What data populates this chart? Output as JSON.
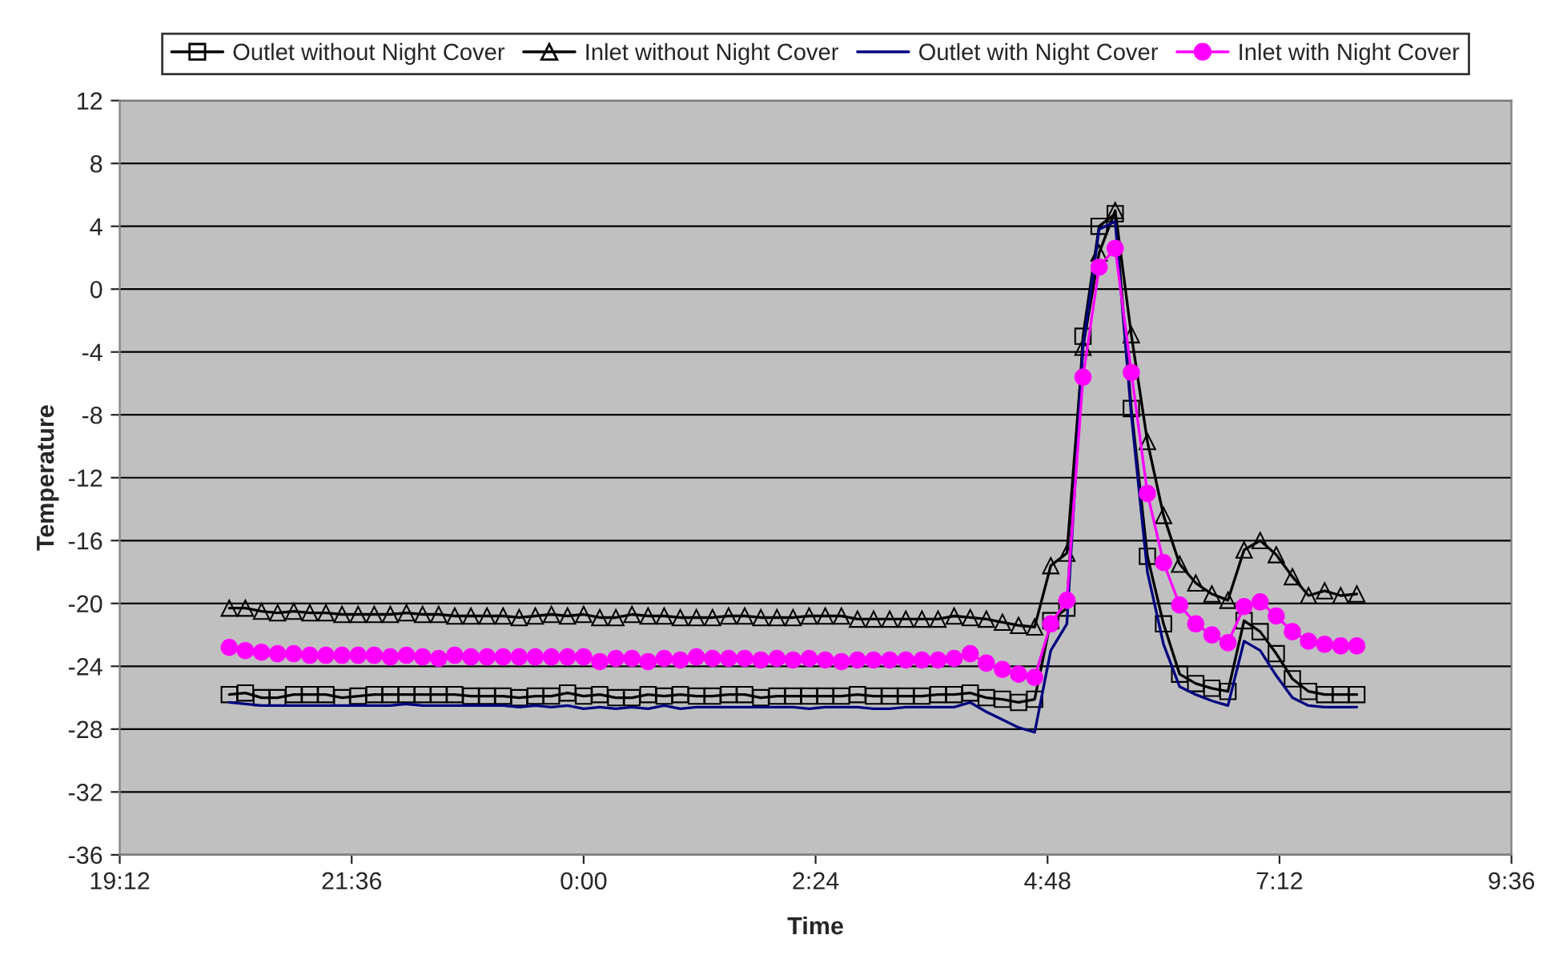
{
  "chart_data": {
    "type": "line",
    "xlabel": "Time",
    "ylabel": "Temperature",
    "x": [
      "2000-01-01T20:20",
      "2000-01-01T20:30",
      "2000-01-01T20:40",
      "2000-01-01T20:50",
      "2000-01-01T21:00",
      "2000-01-01T21:10",
      "2000-01-01T21:20",
      "2000-01-01T21:30",
      "2000-01-01T21:40",
      "2000-01-01T21:50",
      "2000-01-01T22:00",
      "2000-01-01T22:10",
      "2000-01-01T22:20",
      "2000-01-01T22:30",
      "2000-01-01T22:40",
      "2000-01-01T22:50",
      "2000-01-01T23:00",
      "2000-01-01T23:10",
      "2000-01-01T23:20",
      "2000-01-01T23:30",
      "2000-01-01T23:40",
      "2000-01-01T23:50",
      "2000-01-02T00:00",
      "2000-01-02T00:10",
      "2000-01-02T00:20",
      "2000-01-02T00:30",
      "2000-01-02T00:40",
      "2000-01-02T00:50",
      "2000-01-02T01:00",
      "2000-01-02T01:10",
      "2000-01-02T01:20",
      "2000-01-02T01:30",
      "2000-01-02T01:40",
      "2000-01-02T01:50",
      "2000-01-02T02:00",
      "2000-01-02T02:10",
      "2000-01-02T02:20",
      "2000-01-02T02:30",
      "2000-01-02T02:40",
      "2000-01-02T02:50",
      "2000-01-02T03:00",
      "2000-01-02T03:10",
      "2000-01-02T03:20",
      "2000-01-02T03:30",
      "2000-01-02T03:40",
      "2000-01-02T03:50",
      "2000-01-02T04:00",
      "2000-01-02T04:10",
      "2000-01-02T04:20",
      "2000-01-02T04:30",
      "2000-01-02T04:40",
      "2000-01-02T04:50",
      "2000-01-02T05:00",
      "2000-01-02T05:10",
      "2000-01-02T05:20",
      "2000-01-02T05:30",
      "2000-01-02T05:40",
      "2000-01-02T05:50",
      "2000-01-02T06:00",
      "2000-01-02T06:10",
      "2000-01-02T06:20",
      "2000-01-02T06:30",
      "2000-01-02T06:40",
      "2000-01-02T06:50",
      "2000-01-02T07:00",
      "2000-01-02T07:10",
      "2000-01-02T07:20",
      "2000-01-02T07:30",
      "2000-01-02T07:40",
      "2000-01-02T07:50",
      "2000-01-02T08:00"
    ],
    "series": [
      {
        "name": "Outlet without Night Cover",
        "color": "#000000",
        "marker": "square",
        "values": [
          -25.8,
          -25.7,
          -26.0,
          -26.0,
          -25.8,
          -25.8,
          -25.8,
          -26.0,
          -25.9,
          -25.8,
          -25.8,
          -25.8,
          -25.8,
          -25.8,
          -25.8,
          -25.9,
          -25.9,
          -25.9,
          -26.0,
          -25.9,
          -25.9,
          -25.7,
          -25.9,
          -25.8,
          -26.0,
          -26.0,
          -25.8,
          -25.9,
          -25.8,
          -25.9,
          -25.9,
          -25.8,
          -25.8,
          -26.0,
          -25.9,
          -25.9,
          -25.9,
          -25.9,
          -25.9,
          -25.8,
          -25.9,
          -25.9,
          -25.9,
          -25.9,
          -25.8,
          -25.8,
          -25.7,
          -26.0,
          -26.1,
          -26.3,
          -26.1,
          -21.1,
          -20.3,
          -3.0,
          4.0,
          4.8,
          -7.6,
          -17.0,
          -21.3,
          -24.5,
          -25.1,
          -25.4,
          -25.6,
          -21.1,
          -21.8,
          -23.2,
          -24.8,
          -25.6,
          -25.8,
          -25.8,
          -25.8
        ]
      },
      {
        "name": "Inlet without Night Cover",
        "color": "#000000",
        "marker": "triangle",
        "values": [
          -20.3,
          -20.3,
          -20.5,
          -20.6,
          -20.5,
          -20.6,
          -20.6,
          -20.7,
          -20.7,
          -20.7,
          -20.7,
          -20.6,
          -20.7,
          -20.7,
          -20.8,
          -20.8,
          -20.8,
          -20.8,
          -20.9,
          -20.8,
          -20.7,
          -20.8,
          -20.7,
          -20.9,
          -20.9,
          -20.7,
          -20.8,
          -20.8,
          -20.9,
          -20.9,
          -20.9,
          -20.8,
          -20.8,
          -20.9,
          -20.9,
          -20.9,
          -20.8,
          -20.8,
          -20.8,
          -21.0,
          -21.0,
          -21.0,
          -21.0,
          -21.0,
          -21.0,
          -20.8,
          -20.9,
          -21.0,
          -21.2,
          -21.4,
          -21.5,
          -17.6,
          -16.8,
          -3.7,
          2.3,
          5.0,
          -2.9,
          -9.7,
          -14.4,
          -17.5,
          -18.7,
          -19.4,
          -19.8,
          -16.6,
          -16.0,
          -16.9,
          -18.3,
          -19.5,
          -19.2,
          -19.5,
          -19.4
        ]
      },
      {
        "name": "Outlet with Night Cover",
        "color": "#000080",
        "marker": "none",
        "values": [
          -26.3,
          -26.4,
          -26.5,
          -26.5,
          -26.5,
          -26.5,
          -26.5,
          -26.5,
          -26.5,
          -26.5,
          -26.5,
          -26.4,
          -26.5,
          -26.5,
          -26.5,
          -26.5,
          -26.5,
          -26.5,
          -26.6,
          -26.5,
          -26.6,
          -26.5,
          -26.7,
          -26.6,
          -26.7,
          -26.6,
          -26.7,
          -26.5,
          -26.7,
          -26.6,
          -26.6,
          -26.6,
          -26.6,
          -26.6,
          -26.6,
          -26.6,
          -26.7,
          -26.6,
          -26.6,
          -26.6,
          -26.7,
          -26.7,
          -26.6,
          -26.6,
          -26.6,
          -26.6,
          -26.3,
          -26.9,
          -27.4,
          -27.9,
          -28.2,
          -23.0,
          -21.3,
          -3.7,
          3.8,
          4.3,
          -8.0,
          -18.0,
          -22.6,
          -25.3,
          -25.8,
          -26.2,
          -26.5,
          -22.4,
          -23.0,
          -24.6,
          -26.0,
          -26.5,
          -26.6,
          -26.6,
          -26.6
        ]
      },
      {
        "name": "Inlet with Night Cover",
        "color": "#ff00ff",
        "marker": "circle",
        "values": [
          -22.8,
          -23.0,
          -23.1,
          -23.2,
          -23.2,
          -23.3,
          -23.3,
          -23.3,
          -23.3,
          -23.3,
          -23.4,
          -23.3,
          -23.4,
          -23.5,
          -23.3,
          -23.4,
          -23.4,
          -23.4,
          -23.4,
          -23.4,
          -23.4,
          -23.4,
          -23.4,
          -23.7,
          -23.5,
          -23.5,
          -23.7,
          -23.5,
          -23.6,
          -23.4,
          -23.5,
          -23.5,
          -23.5,
          -23.6,
          -23.5,
          -23.6,
          -23.5,
          -23.6,
          -23.7,
          -23.6,
          -23.6,
          -23.6,
          -23.6,
          -23.6,
          -23.6,
          -23.5,
          -23.2,
          -23.8,
          -24.2,
          -24.5,
          -24.7,
          -21.3,
          -19.8,
          -5.6,
          1.4,
          2.6,
          -5.3,
          -13.0,
          -17.4,
          -20.1,
          -21.3,
          -22.0,
          -22.5,
          -20.2,
          -19.9,
          -20.8,
          -21.8,
          -22.4,
          -22.6,
          -22.7,
          -22.7
        ]
      }
    ],
    "xlim": [
      "2000-01-01T19:12",
      "2000-01-02T09:36"
    ],
    "xticks": [
      {
        "value": "2000-01-01T19:12",
        "label": "19:12"
      },
      {
        "value": "2000-01-01T21:36",
        "label": "21:36"
      },
      {
        "value": "2000-01-02T00:00",
        "label": "0:00"
      },
      {
        "value": "2000-01-02T02:24",
        "label": "2:24"
      },
      {
        "value": "2000-01-02T04:48",
        "label": "4:48"
      },
      {
        "value": "2000-01-02T07:12",
        "label": "7:12"
      },
      {
        "value": "2000-01-02T09:36",
        "label": "9:36"
      }
    ],
    "ylim": [
      -36,
      12
    ],
    "yticks": [
      -36,
      -32,
      -28,
      -24,
      -20,
      -16,
      -12,
      -8,
      -4,
      0,
      4,
      8,
      12
    ],
    "grid": "y",
    "legend": "top",
    "line_style": "solid"
  }
}
